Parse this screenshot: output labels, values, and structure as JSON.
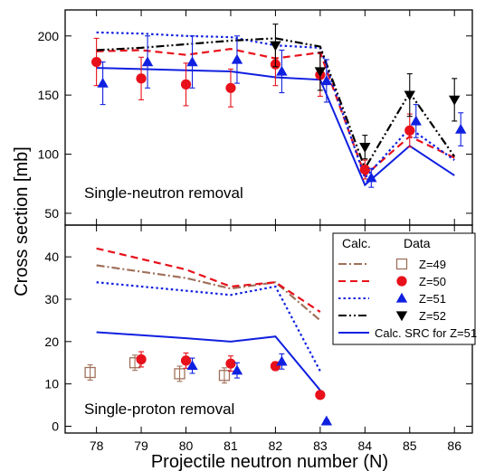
{
  "figure": {
    "ylabel": "Cross section [mb]",
    "xlabel": "Projectile neutron number (N)"
  },
  "colors": {
    "z49": "#a0705a",
    "z50": "#e8101a",
    "z51": "#1020e0",
    "z52": "#000000",
    "src": "#1020e0"
  },
  "chart_data": [
    {
      "type": "line",
      "annotation": "Single-neutron removal",
      "xlim": [
        77.3,
        86.4
      ],
      "ylim": [
        40,
        222
      ],
      "y_ticks": [
        50,
        100,
        150,
        200
      ],
      "x": [
        78,
        79,
        80,
        81,
        82,
        83,
        84,
        85,
        86
      ],
      "series": [
        {
          "key": "z49",
          "role": "calc",
          "style": "dashdot",
          "values": [
            null,
            null,
            null,
            null,
            null,
            null,
            null,
            null,
            null
          ]
        },
        {
          "key": "z50",
          "role": "calc",
          "style": "dashed",
          "values": [
            187,
            188,
            184,
            189,
            181,
            186,
            82,
            115,
            97
          ]
        },
        {
          "key": "z51",
          "role": "calc",
          "style": "dotted",
          "values": [
            203,
            202,
            200,
            199,
            192,
            190,
            80,
            122,
            95
          ]
        },
        {
          "key": "z52",
          "role": "calc",
          "style": "dashdotdot",
          "values": [
            188,
            190,
            193,
            196,
            198,
            191,
            88,
            152,
            98
          ]
        },
        {
          "key": "src",
          "role": "calc",
          "style": "solid",
          "values": [
            173,
            172,
            171,
            170,
            165,
            163,
            74,
            107,
            82
          ]
        },
        {
          "key": "z50",
          "role": "data",
          "marker": "circle",
          "x": [
            78,
            79,
            80,
            81,
            82,
            83,
            84,
            85
          ],
          "values": [
            178,
            164,
            159,
            156,
            176,
            167,
            87,
            120
          ],
          "err": [
            20,
            18,
            18,
            16,
            18,
            18,
            8,
            14
          ]
        },
        {
          "key": "z51",
          "role": "data",
          "marker": "triangle-up",
          "x": [
            78,
            79,
            80,
            81,
            82,
            83,
            84,
            85,
            86
          ],
          "values": [
            160,
            178,
            178,
            180,
            170,
            162,
            80,
            128,
            121
          ],
          "err": [
            18,
            22,
            22,
            20,
            18,
            18,
            8,
            14,
            14
          ]
        },
        {
          "key": "z52",
          "role": "data",
          "marker": "triangle-down",
          "x": [
            82,
            83,
            84,
            85,
            86
          ],
          "values": [
            192,
            170,
            106,
            150,
            146
          ],
          "err": [
            18,
            16,
            10,
            18,
            18
          ]
        }
      ]
    },
    {
      "type": "line",
      "annotation": "Single-proton removal",
      "xlim": [
        77.3,
        86.4
      ],
      "ylim": [
        -1.6,
        47.5
      ],
      "y_ticks": [
        0,
        10,
        20,
        30,
        40
      ],
      "x_ticks": [
        "78",
        "79",
        "80",
        "81",
        "82",
        "83",
        "84",
        "85",
        "86"
      ],
      "legend": {
        "header_calc": "Calc.",
        "header_data": "Data",
        "entries": [
          {
            "key": "z49",
            "label": "Z=49",
            "marker": "square-open",
            "style": "dashdot"
          },
          {
            "key": "z50",
            "label": "Z=50",
            "marker": "circle",
            "style": "dashed"
          },
          {
            "key": "z51",
            "label": "Z=51",
            "marker": "triangle-up",
            "style": "dotted"
          },
          {
            "key": "z52",
            "label": "Z=52",
            "marker": "triangle-down",
            "style": "dashdotdot"
          }
        ],
        "src_label": "Calc. SRC for Z=51"
      },
      "x": [
        78,
        79,
        80,
        81,
        82,
        83
      ],
      "series": [
        {
          "key": "z49",
          "role": "calc",
          "style": "dashdot",
          "values": [
            38,
            36.5,
            35,
            32.5,
            34,
            25
          ]
        },
        {
          "key": "z50",
          "role": "calc",
          "style": "dashed",
          "values": [
            42,
            39.5,
            37,
            33,
            34,
            27
          ]
        },
        {
          "key": "z51",
          "role": "calc",
          "style": "dotted",
          "values": [
            34,
            33,
            32,
            31,
            33,
            13
          ]
        },
        {
          "key": "src",
          "role": "calc",
          "style": "solid",
          "values": [
            22.2,
            21.5,
            20.8,
            20,
            21.2,
            8.5
          ]
        },
        {
          "key": "z49",
          "role": "data",
          "marker": "square-open",
          "x": [
            78,
            79,
            80,
            81
          ],
          "values": [
            12.7,
            15,
            12.4,
            12
          ],
          "err": [
            1.8,
            1.8,
            1.8,
            1.8
          ]
        },
        {
          "key": "z50",
          "role": "data",
          "marker": "circle",
          "x": [
            79,
            80,
            81,
            82,
            83
          ],
          "values": [
            15.8,
            15.5,
            14.8,
            14.2,
            7.4
          ],
          "err": [
            1.8,
            1.8,
            1.8,
            1,
            0.5
          ]
        },
        {
          "key": "z51",
          "role": "data",
          "marker": "triangle-up",
          "x": [
            80,
            81,
            82,
            83
          ],
          "values": [
            14.3,
            13.2,
            15.3,
            1.2
          ],
          "err": [
            1.8,
            1.8,
            1.8,
            0.3
          ]
        }
      ]
    }
  ]
}
